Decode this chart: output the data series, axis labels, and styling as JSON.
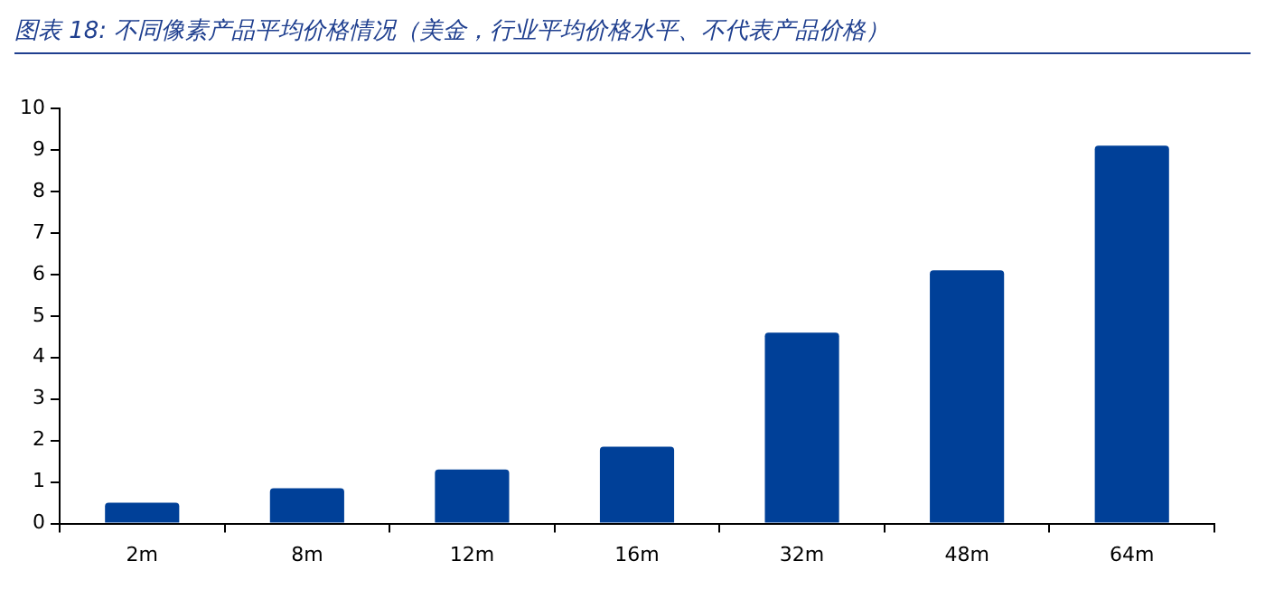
{
  "chart_data": {
    "type": "bar",
    "title": "图表 18:  不同像素产品平均价格情况（美金，行业平均价格水平、不代表产品价格）",
    "categories": [
      "2m",
      "8m",
      "12m",
      "16m",
      "32m",
      "48m",
      "64m"
    ],
    "values": [
      0.5,
      0.85,
      1.3,
      1.85,
      4.6,
      6.1,
      9.1
    ],
    "color": "#004098",
    "ylim": [
      0,
      10
    ],
    "yticks": [
      0,
      1,
      2,
      3,
      4,
      5,
      6,
      7,
      8,
      9,
      10
    ],
    "grid": false,
    "legend": false
  }
}
